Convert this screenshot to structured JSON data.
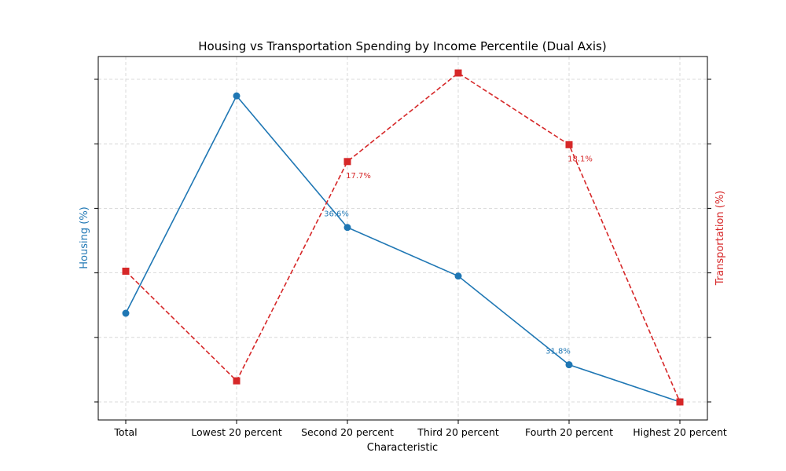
{
  "chart_data": {
    "type": "line",
    "title": "Housing vs Transportation Spending by Income Percentile (Dual Axis)",
    "xlabel": "Characteristic",
    "y1label": "Housing (%)",
    "y2label": "Transportation (%)",
    "categories": [
      "Total",
      "Lowest 20 percent",
      "Second 20 percent",
      "Third 20 percent",
      "Fourth 20 percent",
      "Highest 20 percent"
    ],
    "y1lim": [
      30.5,
      42.0
    ],
    "y2lim": [
      12.0,
      19.8
    ],
    "grid": true,
    "series": [
      {
        "name": "Housing (%)",
        "axis": "left",
        "color": "#1f77b4",
        "style": "solid",
        "marker": "circle",
        "values": [
          33.6,
          41.2,
          36.6,
          34.9,
          31.8,
          30.5
        ],
        "point_labels": [
          "",
          "",
          "36.6%",
          "",
          "31.8%",
          ""
        ]
      },
      {
        "name": "Transportation (%)",
        "axis": "right",
        "color": "#d62728",
        "style": "dashed",
        "marker": "square",
        "values": [
          15.1,
          12.5,
          17.7,
          19.8,
          18.1,
          12.0
        ],
        "point_labels": [
          "",
          "",
          "17.7%",
          "",
          "18.1%",
          ""
        ]
      }
    ]
  }
}
